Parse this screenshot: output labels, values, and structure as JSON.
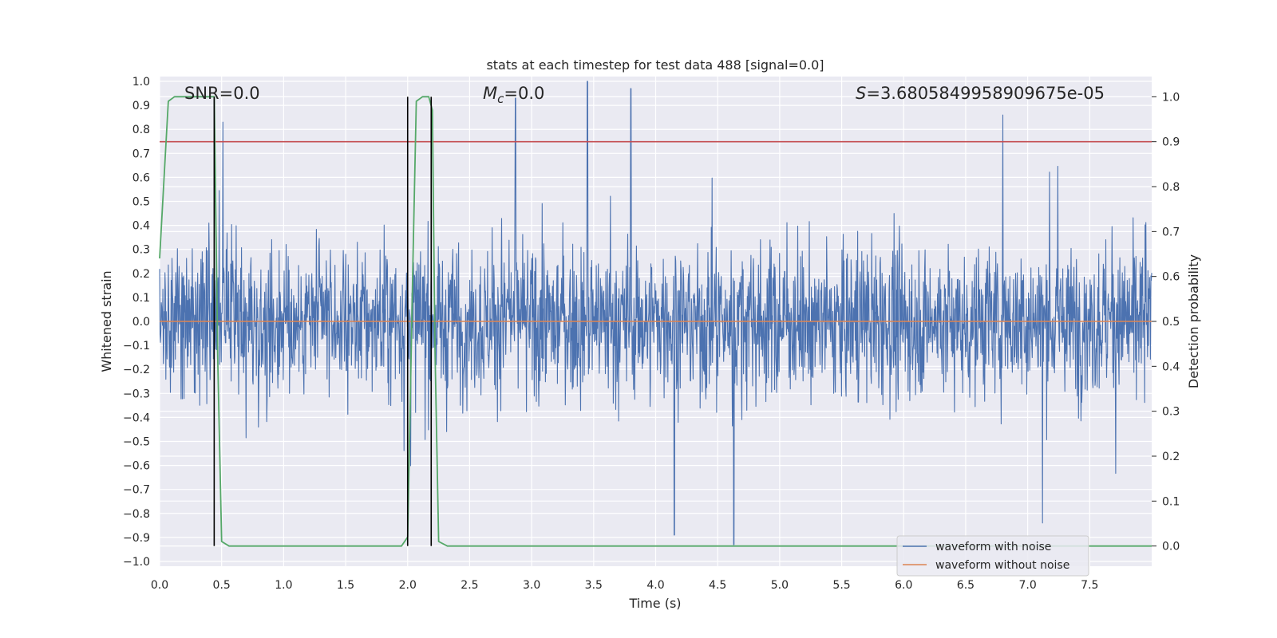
{
  "chart_data": {
    "type": "line",
    "title": "stats at each timestep for test data 488 [signal=0.0]",
    "xlabel": "Time (s)",
    "ylabel": "Whitened strain",
    "y2label": "Detection probability",
    "xlim": [
      0.0,
      8.0
    ],
    "ylim": [
      -1.02,
      1.02
    ],
    "y2lim": [
      -0.045,
      1.045
    ],
    "x_ticks": [
      "0.0",
      "0.5",
      "1.0",
      "1.5",
      "2.0",
      "2.5",
      "3.0",
      "3.5",
      "4.0",
      "4.5",
      "5.0",
      "5.5",
      "6.0",
      "6.5",
      "7.0",
      "7.5"
    ],
    "y_ticks": [
      "1.0",
      "0.9",
      "0.8",
      "0.7",
      "0.6",
      "0.5",
      "0.4",
      "0.3",
      "0.2",
      "0.1",
      "0.0",
      "−0.1",
      "−0.2",
      "−0.3",
      "−0.4",
      "−0.5",
      "−0.6",
      "−0.7",
      "−0.8",
      "−0.9",
      "−1.0"
    ],
    "y2_ticks": [
      "1.0",
      "0.9",
      "0.8",
      "0.7",
      "0.6",
      "0.5",
      "0.4",
      "0.3",
      "0.2",
      "0.1",
      "0.0"
    ],
    "annotations": {
      "snr": "SNR=0.0",
      "mc": "=0.0",
      "mc_symbol": "M",
      "mc_subscript": "c",
      "s": "=3.6805849958909675e-05",
      "s_symbol": "S"
    },
    "series": [
      {
        "name": "waveform with noise",
        "color": "#4c72b0",
        "kind": "noise",
        "approx_range": [
          -0.93,
          1.0
        ],
        "typical_extent": 0.6,
        "peaks": [
          {
            "x": 0.51,
            "y": 0.83
          },
          {
            "x": 2.87,
            "y": 0.93
          },
          {
            "x": 3.45,
            "y": 1.0
          },
          {
            "x": 3.8,
            "y": 0.97
          },
          {
            "x": 6.8,
            "y": 0.86
          },
          {
            "x": 4.63,
            "y": -0.93
          },
          {
            "x": 4.15,
            "y": -0.89
          },
          {
            "x": 7.12,
            "y": -0.84
          }
        ]
      },
      {
        "name": "waveform without noise",
        "color": "#dd8452",
        "y": 0.0
      },
      {
        "name": "detection probability",
        "color": "#55a868",
        "axis": "right",
        "x": [
          0.0,
          0.04,
          0.07,
          0.12,
          0.2,
          0.3,
          0.38,
          0.44,
          0.47,
          0.5,
          0.56,
          0.7,
          1.0,
          1.5,
          1.95,
          2.0,
          2.04,
          2.07,
          2.12,
          2.17,
          2.2,
          2.22,
          2.25,
          2.32,
          2.5,
          3.0,
          4.0,
          5.0,
          6.0,
          7.0,
          8.0
        ],
        "y": [
          0.64,
          0.84,
          0.99,
          1.0,
          1.0,
          1.0,
          1.0,
          1.0,
          0.4,
          0.01,
          0.0,
          0.0,
          0.0,
          0.0,
          0.0,
          0.02,
          0.6,
          0.99,
          1.0,
          1.0,
          0.97,
          0.45,
          0.01,
          0.0,
          0.0,
          0.0,
          0.0,
          0.0,
          0.0,
          0.0,
          0.0
        ]
      }
    ],
    "threshold_line": {
      "color": "#c44e52",
      "axis": "right",
      "y": 0.9
    },
    "vertical_lines": {
      "color": "#000000",
      "x": [
        0.44,
        2.0,
        2.19
      ],
      "y_range_right": [
        0.0,
        1.0
      ]
    },
    "grid": true,
    "legend": {
      "placement": "lower-right",
      "entries": [
        {
          "label": "waveform with noise",
          "color": "#4c72b0"
        },
        {
          "label": "waveform without noise",
          "color": "#dd8452"
        }
      ]
    }
  }
}
